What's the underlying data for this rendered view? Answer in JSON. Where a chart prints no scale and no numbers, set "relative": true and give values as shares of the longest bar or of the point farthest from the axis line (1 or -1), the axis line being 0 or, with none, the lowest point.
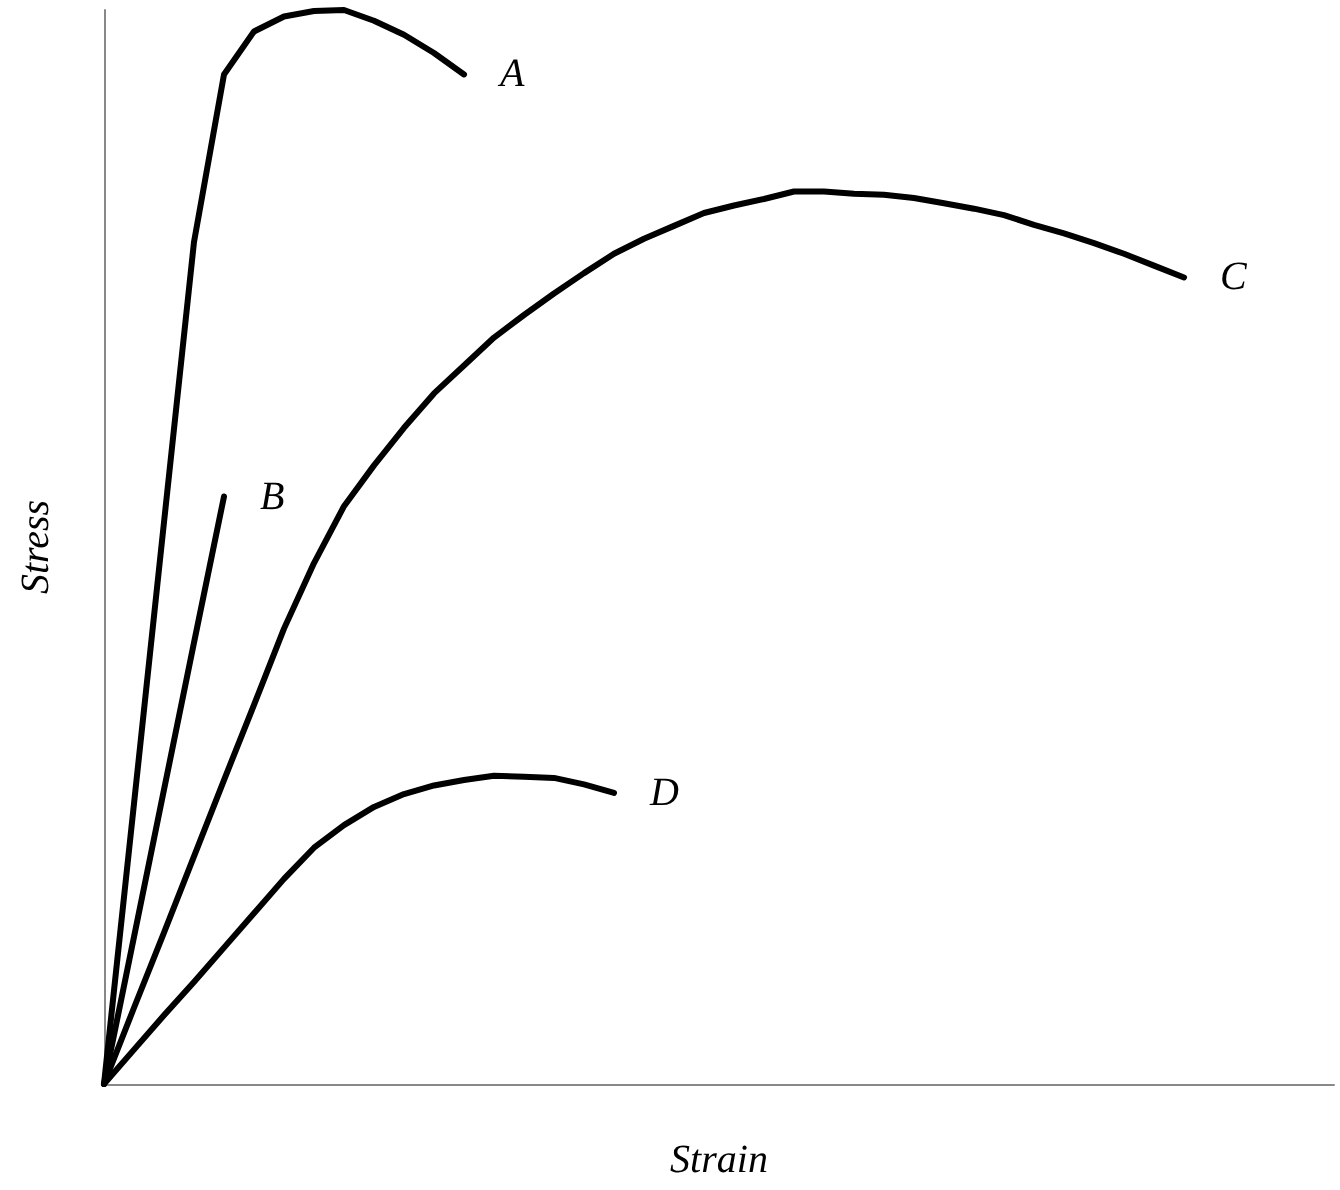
{
  "chart_data": {
    "type": "line",
    "xlabel": "Strain",
    "ylabel": "Stress",
    "relative": true,
    "grid": false,
    "legend": false,
    "marker": "none",
    "line_style": "solid",
    "categories": [
      null,
      null,
      null,
      null,
      null,
      null,
      null,
      null,
      null,
      null,
      null,
      null,
      null,
      null,
      null,
      null,
      null,
      null,
      null,
      null,
      null,
      null,
      null,
      null,
      null,
      null,
      null,
      null,
      null,
      null,
      null,
      null,
      null,
      null,
      null,
      null,
      null,
      null,
      null,
      null,
      null,
      null
    ],
    "series": [
      {
        "name": "A",
        "color": "#000000",
        "values": [
          0,
          0.261,
          0.523,
          0.784,
          0.94,
          0.98,
          0.994,
          0.999,
          1,
          0.99,
          0.977,
          0.96,
          0.94,
          null,
          null,
          null,
          null,
          null,
          null,
          null,
          null,
          null,
          null,
          null,
          null,
          null,
          null,
          null,
          null,
          null,
          null,
          null,
          null,
          null,
          null,
          null,
          null,
          null,
          null,
          null,
          null,
          null
        ]
      },
      {
        "name": "B",
        "color": "#000000",
        "values": [
          0,
          0.137,
          0.274,
          0.411,
          0.547,
          null,
          null,
          null,
          null,
          null,
          null,
          null,
          null,
          null,
          null,
          null,
          null,
          null,
          null,
          null,
          null,
          null,
          null,
          null,
          null,
          null,
          null,
          null,
          null,
          null,
          null,
          null,
          null,
          null,
          null,
          null,
          null,
          null,
          null,
          null,
          null,
          null
        ]
      },
      {
        "name": "C",
        "color": "#000000",
        "values": [
          0,
          0.071,
          0.141,
          0.212,
          0.283,
          0.353,
          0.424,
          0.485,
          0.538,
          0.576,
          0.611,
          0.643,
          0.669,
          0.695,
          0.716,
          0.736,
          0.755,
          0.773,
          0.787,
          0.799,
          0.811,
          0.818,
          0.824,
          0.831,
          0.831,
          0.829,
          0.828,
          0.825,
          0.82,
          0.815,
          0.809,
          0.8,
          0.792,
          0.783,
          0.773,
          0.762,
          0.751,
          null,
          null,
          null,
          null,
          null
        ]
      },
      {
        "name": "D",
        "color": "#000000",
        "values": [
          0,
          0.032,
          0.064,
          0.095,
          0.127,
          0.159,
          0.191,
          0.22,
          0.241,
          0.258,
          0.27,
          0.278,
          0.283,
          0.287,
          0.286,
          0.285,
          0.279,
          0.271,
          null,
          null,
          null,
          null,
          null,
          null,
          null,
          null,
          null,
          null,
          null,
          null,
          null,
          null,
          null,
          null,
          null,
          null,
          null,
          null,
          null,
          null,
          null,
          null
        ]
      }
    ]
  }
}
